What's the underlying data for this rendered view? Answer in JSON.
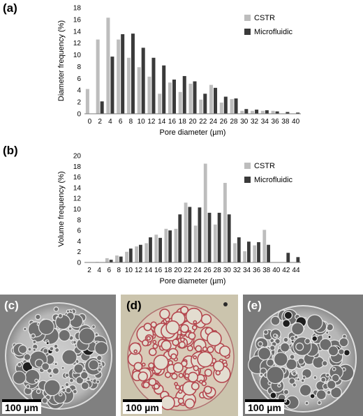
{
  "panels": {
    "a": "(a)",
    "b": "(b)",
    "c": "(c)",
    "d": "(d)",
    "e": "(e)"
  },
  "scale_bar_label": "100 µm",
  "colors": {
    "cstr": "#bdbdbd",
    "microfluidic": "#3a3a3a"
  },
  "chart_data": [
    {
      "type": "bar",
      "title": "",
      "xlabel": "Pore diameter (µm)",
      "ylabel": "Diameter frequency (%)",
      "ylim": [
        0,
        18
      ],
      "yticks": [
        0,
        2,
        4,
        6,
        8,
        10,
        12,
        14,
        16,
        18
      ],
      "categories": [
        "0",
        "2",
        "4",
        "6",
        "8",
        "10",
        "12",
        "14",
        "16",
        "18",
        "20",
        "22",
        "24",
        "26",
        "28",
        "30",
        "32",
        "34",
        "36",
        "38",
        "40"
      ],
      "legend_position": "top-right",
      "grid": false,
      "series": [
        {
          "name": "CSTR",
          "values": [
            4.2,
            12.6,
            16.3,
            12.6,
            9.5,
            7.9,
            6.3,
            3.4,
            5.3,
            3.7,
            5.1,
            2.4,
            4.9,
            1.9,
            2.5,
            0.5,
            0.5,
            0.5,
            0.5,
            0,
            0
          ]
        },
        {
          "name": "Microfluidic",
          "values": [
            0,
            2.1,
            9.7,
            13.5,
            13.6,
            11.2,
            9.5,
            8.2,
            5.8,
            6.4,
            5.5,
            3.4,
            4.4,
            2.9,
            2.6,
            0.8,
            0.7,
            0.6,
            0.4,
            0.3,
            0.2
          ]
        }
      ]
    },
    {
      "type": "bar",
      "title": "",
      "xlabel": "Pore diameter (µm)",
      "ylabel": "Volume frequency (%)",
      "ylim": [
        0,
        20
      ],
      "yticks": [
        0,
        2,
        4,
        6,
        8,
        10,
        12,
        14,
        16,
        18,
        20
      ],
      "categories": [
        "2",
        "4",
        "6",
        "8",
        "10",
        "12",
        "14",
        "16",
        "18",
        "20",
        "22",
        "24",
        "26",
        "28",
        "30",
        "32",
        "34",
        "36",
        "38",
        "40",
        "42",
        "44"
      ],
      "legend_position": "top-right",
      "grid": false,
      "series": [
        {
          "name": "CSTR",
          "values": [
            0,
            0.1,
            0.8,
            1.3,
            2.0,
            3.0,
            3.6,
            5.2,
            6.3,
            6.3,
            11.2,
            6.9,
            18.5,
            7.1,
            14.9,
            3.6,
            2.1,
            3.2,
            6.1,
            0,
            0,
            0
          ]
        },
        {
          "name": "Microfluidic",
          "values": [
            0,
            0,
            0.5,
            1.1,
            2.6,
            3.3,
            4.7,
            4.6,
            6.0,
            9.0,
            10.4,
            10.3,
            9.3,
            9.3,
            9.0,
            4.7,
            3.9,
            3.8,
            3.3,
            0,
            1.8,
            1.0
          ]
        }
      ]
    }
  ]
}
